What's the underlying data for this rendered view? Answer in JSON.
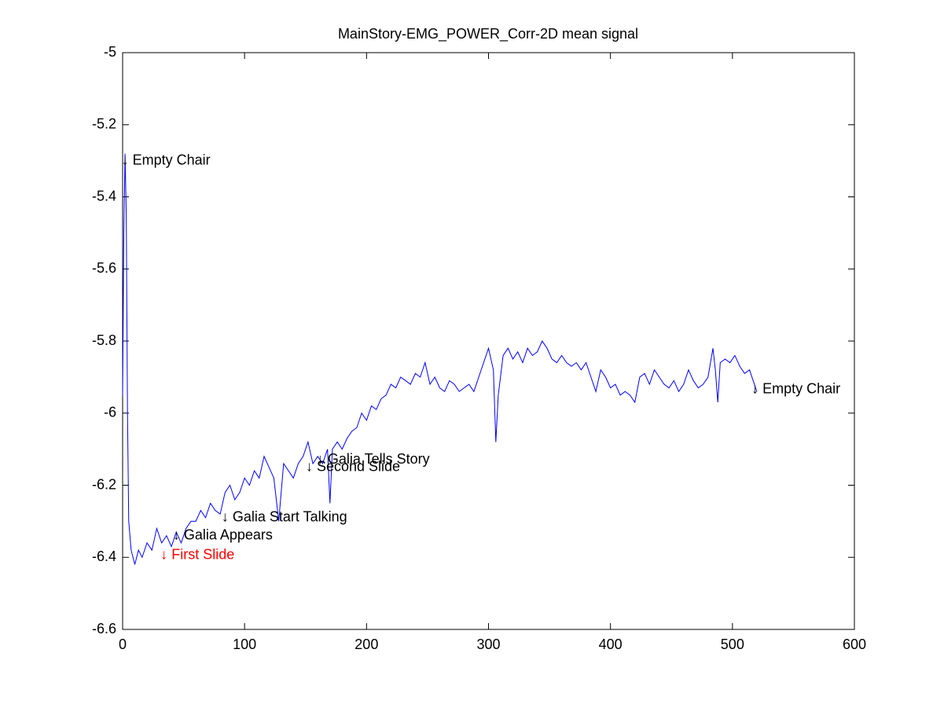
{
  "chart_data": {
    "type": "line",
    "title": "MainStory-EMG_POWER_Corr-2D mean signal",
    "x": [
      0,
      1,
      2,
      3,
      4,
      5,
      7,
      10,
      13,
      16,
      20,
      24,
      28,
      32,
      36,
      40,
      44,
      48,
      52,
      56,
      60,
      64,
      68,
      72,
      76,
      80,
      84,
      88,
      92,
      96,
      100,
      104,
      108,
      112,
      116,
      120,
      124,
      128,
      132,
      136,
      140,
      144,
      148,
      152,
      156,
      160,
      164,
      168,
      170,
      172,
      176,
      180,
      184,
      188,
      192,
      196,
      200,
      204,
      208,
      212,
      216,
      220,
      224,
      228,
      232,
      236,
      240,
      244,
      248,
      252,
      256,
      260,
      264,
      268,
      272,
      276,
      280,
      284,
      288,
      292,
      296,
      300,
      304,
      306,
      308,
      312,
      316,
      320,
      324,
      328,
      332,
      336,
      340,
      344,
      348,
      352,
      356,
      360,
      364,
      368,
      372,
      376,
      380,
      384,
      388,
      392,
      396,
      400,
      404,
      408,
      412,
      416,
      420,
      424,
      428,
      432,
      436,
      440,
      444,
      448,
      452,
      456,
      460,
      464,
      468,
      472,
      476,
      480,
      484,
      486,
      488,
      490,
      494,
      498,
      502,
      506,
      510,
      514,
      518,
      520
    ],
    "series": [
      {
        "color": "#0000ff",
        "values": [
          -5.95,
          -5.5,
          -5.28,
          -5.45,
          -6.0,
          -6.3,
          -6.38,
          -6.42,
          -6.38,
          -6.4,
          -6.36,
          -6.38,
          -6.32,
          -6.36,
          -6.34,
          -6.37,
          -6.33,
          -6.36,
          -6.32,
          -6.3,
          -6.3,
          -6.27,
          -6.29,
          -6.25,
          -6.27,
          -6.28,
          -6.22,
          -6.2,
          -6.24,
          -6.22,
          -6.18,
          -6.2,
          -6.16,
          -6.18,
          -6.12,
          -6.15,
          -6.18,
          -6.3,
          -6.14,
          -6.16,
          -6.18,
          -6.14,
          -6.12,
          -6.08,
          -6.14,
          -6.12,
          -6.14,
          -6.1,
          -6.25,
          -6.1,
          -6.08,
          -6.1,
          -6.07,
          -6.05,
          -6.04,
          -6.0,
          -6.02,
          -5.98,
          -5.99,
          -5.96,
          -5.95,
          -5.92,
          -5.93,
          -5.9,
          -5.91,
          -5.92,
          -5.89,
          -5.9,
          -5.86,
          -5.92,
          -5.9,
          -5.93,
          -5.94,
          -5.91,
          -5.92,
          -5.94,
          -5.93,
          -5.92,
          -5.94,
          -5.9,
          -5.86,
          -5.82,
          -5.88,
          -6.08,
          -5.95,
          -5.84,
          -5.82,
          -5.85,
          -5.83,
          -5.86,
          -5.82,
          -5.84,
          -5.83,
          -5.8,
          -5.82,
          -5.85,
          -5.86,
          -5.84,
          -5.86,
          -5.87,
          -5.86,
          -5.88,
          -5.86,
          -5.9,
          -5.94,
          -5.88,
          -5.9,
          -5.93,
          -5.92,
          -5.95,
          -5.94,
          -5.95,
          -5.97,
          -5.9,
          -5.89,
          -5.92,
          -5.88,
          -5.9,
          -5.92,
          -5.93,
          -5.91,
          -5.94,
          -5.92,
          -5.88,
          -5.91,
          -5.93,
          -5.92,
          -5.9,
          -5.82,
          -5.88,
          -5.97,
          -5.86,
          -5.85,
          -5.86,
          -5.84,
          -5.87,
          -5.89,
          -5.88,
          -5.92,
          -5.94
        ]
      }
    ],
    "xlim": [
      0,
      600
    ],
    "xticks": [
      0,
      100,
      200,
      300,
      400,
      500,
      600
    ],
    "ylim": [
      -6.6,
      -5
    ],
    "yticks": [
      -6.6,
      -6.4,
      -6.2,
      -6,
      -5.8,
      -5.6,
      -5.4,
      -5.2,
      -5
    ],
    "annotations": [
      {
        "text": "↓ Empty Chair",
        "x": 3,
        "y": -5.3,
        "color": "#000000"
      },
      {
        "text": "↓ Empty Chair",
        "x": 519.5,
        "y": -5.935,
        "color": "#000000"
      },
      {
        "text": "↓ Galia Tells Story",
        "x": 163,
        "y": -6.13,
        "color": "#000000"
      },
      {
        "text": "↓ Second Slide",
        "x": 154,
        "y": -6.15,
        "color": "#000000"
      },
      {
        "text": "↓ Galia Start Talking",
        "x": 85,
        "y": -6.29,
        "color": "#000000"
      },
      {
        "text": "↓ Galia Appears",
        "x": 45,
        "y": -6.34,
        "color": "#000000"
      },
      {
        "text": "↓ First Slide",
        "x": 35,
        "y": -6.395,
        "color": "#ff0000"
      }
    ]
  }
}
